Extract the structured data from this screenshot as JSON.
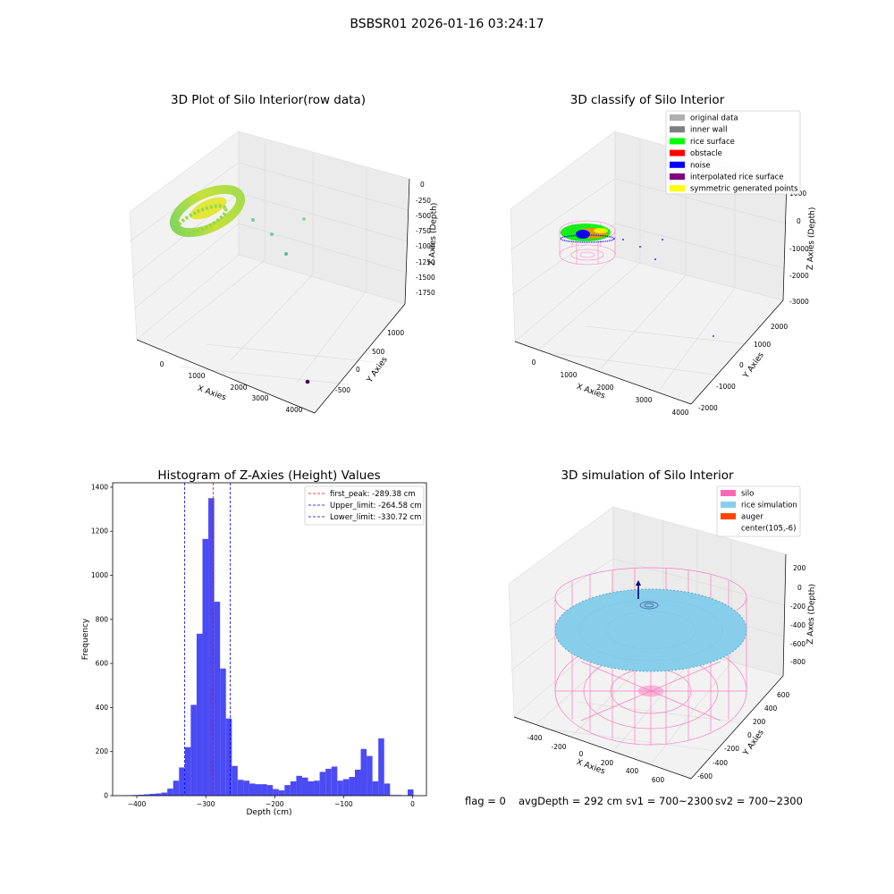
{
  "figure": {
    "suptitle": "BSBSR01 2026-01-16 03:24:17",
    "footer": {
      "flag": "flag = 0",
      "avg_depth": "avgDepth = 292 cm",
      "sv1": "sv1 = 700~2300",
      "sv2": "sv2 = 700~2300"
    }
  },
  "colors": {
    "original": "#b0b0b0",
    "inner_wall": "#808080",
    "rice_surface": "#00ff00",
    "obstacle": "#ff0000",
    "noise": "#0000ff",
    "interpolated": "#800080",
    "symmetric": "#ffff00",
    "silo": "#ff69b4",
    "rice_sim": "#87ceeb",
    "auger": "#ff4500",
    "hist_bar": "#4b4bf5"
  },
  "chart_data": [
    {
      "type": "scatter",
      "title": "3D Plot of Silo Interior(row data)",
      "xlabel": "X Axies",
      "ylabel": "Y Axies",
      "zlabel": "Z Axies (Depth)",
      "x_ticks": [
        "0",
        "1000",
        "2000",
        "3000",
        "4000"
      ],
      "y_ticks": [
        "-500",
        "0",
        "500",
        "1000"
      ],
      "z_ticks": [
        "0",
        "-250",
        "-500",
        "-750",
        "-1000",
        "-1250",
        "-1500",
        "-1750"
      ],
      "colormap": "viridis",
      "outlier_points": [
        {
          "x": 600,
          "y": 500,
          "z": -300
        },
        {
          "x": 1000,
          "y": 550,
          "z": -350
        },
        {
          "x": 1800,
          "y": 900,
          "z": -200
        },
        {
          "x": 1500,
          "y": 300,
          "z": -700
        },
        {
          "x": 4000,
          "y": -700,
          "z": -1900
        }
      ]
    },
    {
      "type": "scatter",
      "title": "3D classify of Silo Interior",
      "xlabel": "X Axies",
      "ylabel": "Y Axies",
      "zlabel": "Z Axies (Depth)",
      "x_ticks": [
        "0",
        "1000",
        "2000",
        "3000",
        "4000"
      ],
      "y_ticks": [
        "-2000",
        "-1000",
        "0",
        "1000",
        "2000"
      ],
      "z_ticks": [
        "1000",
        "0",
        "-1000",
        "-2000",
        "-3000"
      ],
      "legend": [
        {
          "label": "original data",
          "color_key": "original"
        },
        {
          "label": "inner wall",
          "color_key": "inner_wall"
        },
        {
          "label": "rice surface",
          "color_key": "rice_surface"
        },
        {
          "label": "obstacle",
          "color_key": "obstacle"
        },
        {
          "label": "noise",
          "color_key": "noise"
        },
        {
          "label": "interpolated rice surface",
          "color_key": "interpolated"
        },
        {
          "label": "symmetric generated points",
          "color_key": "symmetric"
        }
      ],
      "legend_position": "top-right"
    },
    {
      "type": "bar",
      "title": "Histogram of Z-Axies (Height) Values",
      "xlabel": "Depth (cm)",
      "ylabel": "Frequency",
      "xlim": [
        -435,
        20
      ],
      "ylim": [
        0,
        1420
      ],
      "x_ticks": [
        -400,
        -300,
        -200,
        -100,
        0
      ],
      "y_ticks": [
        0,
        200,
        400,
        600,
        800,
        1000,
        1200,
        1400
      ],
      "bin_width": 8.5,
      "bins": [
        {
          "x": -428,
          "v": 1
        },
        {
          "x": -419.5,
          "v": 1
        },
        {
          "x": -411,
          "v": 2
        },
        {
          "x": -402.5,
          "v": 3
        },
        {
          "x": -394,
          "v": 4
        },
        {
          "x": -385.5,
          "v": 6
        },
        {
          "x": -377,
          "v": 8
        },
        {
          "x": -368.5,
          "v": 10
        },
        {
          "x": -360,
          "v": 14
        },
        {
          "x": -351.5,
          "v": 32
        },
        {
          "x": -343,
          "v": 68
        },
        {
          "x": -334.5,
          "v": 128
        },
        {
          "x": -326,
          "v": 220
        },
        {
          "x": -317.5,
          "v": 412
        },
        {
          "x": -309,
          "v": 735
        },
        {
          "x": -300.5,
          "v": 1165
        },
        {
          "x": -292,
          "v": 1350
        },
        {
          "x": -283.5,
          "v": 880
        },
        {
          "x": -275,
          "v": 577
        },
        {
          "x": -266.5,
          "v": 350
        },
        {
          "x": -258,
          "v": 135
        },
        {
          "x": -249.5,
          "v": 72
        },
        {
          "x": -241,
          "v": 68
        },
        {
          "x": -232.5,
          "v": 55
        },
        {
          "x": -224,
          "v": 52
        },
        {
          "x": -215.5,
          "v": 52
        },
        {
          "x": -207,
          "v": 48
        },
        {
          "x": -198.5,
          "v": 30
        },
        {
          "x": -190,
          "v": 24
        },
        {
          "x": -181.5,
          "v": 48
        },
        {
          "x": -173,
          "v": 65
        },
        {
          "x": -164.5,
          "v": 90
        },
        {
          "x": -156,
          "v": 82
        },
        {
          "x": -147.5,
          "v": 65
        },
        {
          "x": -139,
          "v": 68
        },
        {
          "x": -130.5,
          "v": 108
        },
        {
          "x": -122,
          "v": 122
        },
        {
          "x": -113.5,
          "v": 132
        },
        {
          "x": -105,
          "v": 68
        },
        {
          "x": -96.5,
          "v": 75
        },
        {
          "x": -88,
          "v": 85
        },
        {
          "x": -79.5,
          "v": 118
        },
        {
          "x": -71,
          "v": 212
        },
        {
          "x": -62.5,
          "v": 180
        },
        {
          "x": -54,
          "v": 65
        },
        {
          "x": -45.5,
          "v": 260
        },
        {
          "x": -37,
          "v": 55
        },
        {
          "x": -28.5,
          "v": 3
        },
        {
          "x": -20,
          "v": 3
        },
        {
          "x": -11.5,
          "v": 2
        },
        {
          "x": -3,
          "v": 28
        }
      ],
      "lines": [
        {
          "label": "first_peak: -289.38 cm",
          "x": -289.38,
          "color": "#ff0000"
        },
        {
          "label": "Upper_limit: -264.58 cm",
          "x": -264.58,
          "color": "#0000ff"
        },
        {
          "label": "Lower_limit: -330.72 cm",
          "x": -330.72,
          "color": "#0000ff"
        }
      ],
      "legend_position": "top-right"
    },
    {
      "type": "scatter",
      "title": "3D simulation of Silo Interior",
      "xlabel": "X Axies",
      "ylabel": "Y Axies",
      "zlabel": "Z Axes (Depth)",
      "x_ticks": [
        "-400",
        "-200",
        "0",
        "200",
        "400",
        "600"
      ],
      "y_ticks": [
        "-600",
        "-400",
        "-200",
        "0",
        "200",
        "400",
        "600"
      ],
      "z_ticks": [
        "200",
        "0",
        "-200",
        "-400",
        "-600",
        "-800"
      ],
      "legend": [
        {
          "label": "silo",
          "color_key": "silo"
        },
        {
          "label": "rice simulation",
          "color_key": "rice_sim"
        },
        {
          "label": "auger",
          "color_key": "auger"
        },
        {
          "label": "center(105,-6)",
          "color_key": ""
        }
      ],
      "legend_position": "top-right"
    }
  ]
}
